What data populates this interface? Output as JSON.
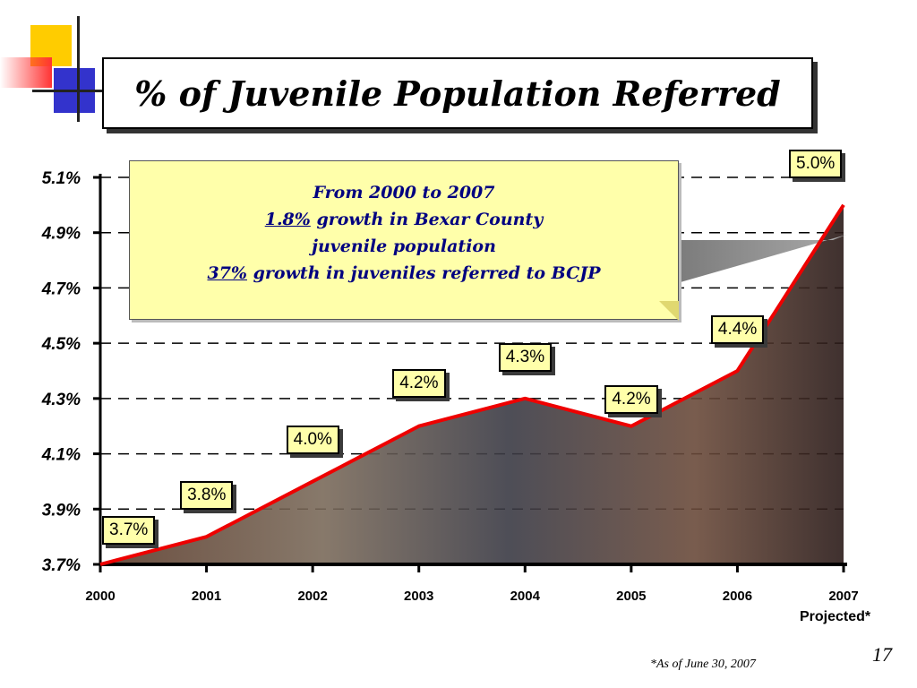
{
  "title": "% of Juvenile Population Referred",
  "callout": {
    "line1": "From 2000 to 2007",
    "line2_value": "1.8%",
    "line2_text": " growth in Bexar County",
    "line3": "juvenile population",
    "line4_value": "37%",
    "line4_text": " growth in juveniles referred to BCJP"
  },
  "x_note": "Projected*",
  "footnote": "*As of June 30, 2007",
  "page_number": "17",
  "colors": {
    "line": "#ee0000",
    "label_bg": "#ffffaa",
    "callout_text": "#000080"
  },
  "chart_data": {
    "type": "line",
    "title": "% of Juvenile Population Referred",
    "categories": [
      "2000",
      "2001",
      "2002",
      "2003",
      "2004",
      "2005",
      "2006",
      "2007"
    ],
    "values": [
      3.7,
      3.8,
      4.0,
      4.2,
      4.3,
      4.2,
      4.4,
      5.0
    ],
    "data_labels": [
      "3.7%",
      "3.8%",
      "4.0%",
      "4.2%",
      "4.3%",
      "4.2%",
      "4.4%",
      "5.0%"
    ],
    "y_ticks": [
      "5.1%",
      "4.9%",
      "4.7%",
      "4.5%",
      "4.3%",
      "4.1%",
      "3.9%",
      "3.7%"
    ],
    "y_tick_values": [
      5.1,
      4.9,
      4.7,
      4.5,
      4.3,
      4.1,
      3.9,
      3.7
    ],
    "ylim": [
      3.7,
      5.1
    ],
    "grid": true,
    "grid_style": "dashed"
  }
}
